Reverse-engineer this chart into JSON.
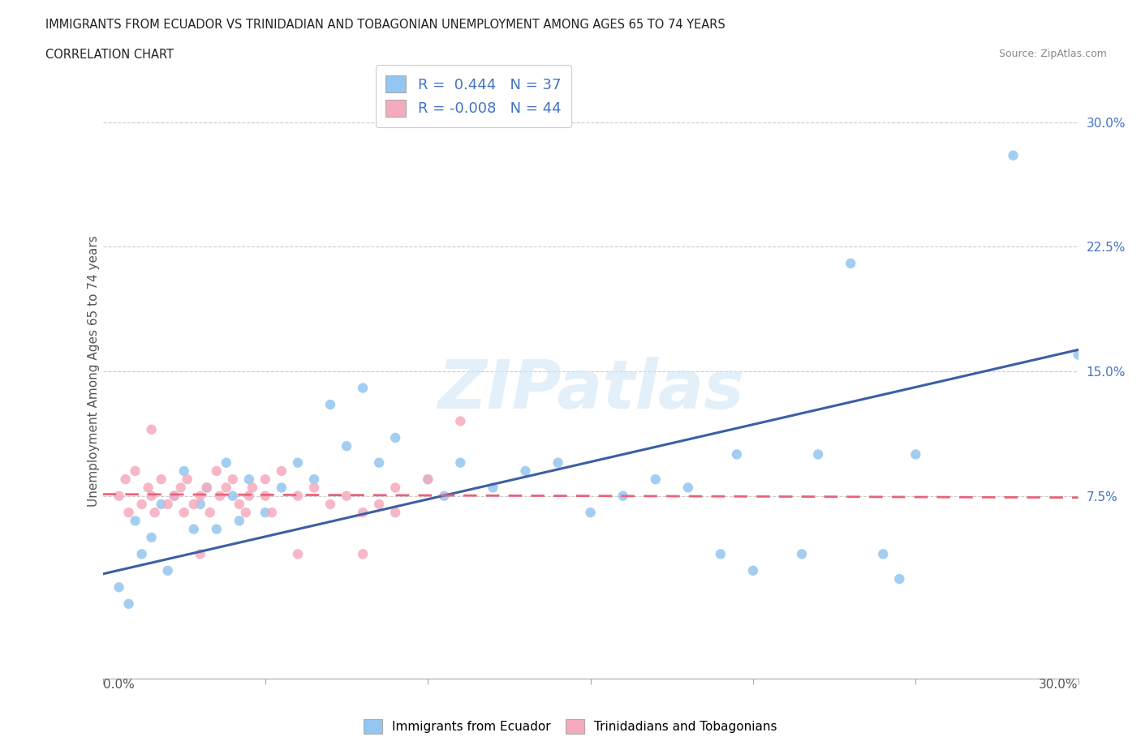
{
  "title_line1": "IMMIGRANTS FROM ECUADOR VS TRINIDADIAN AND TOBAGONIAN UNEMPLOYMENT AMONG AGES 65 TO 74 YEARS",
  "title_line2": "CORRELATION CHART",
  "source": "Source: ZipAtlas.com",
  "ylabel": "Unemployment Among Ages 65 to 74 years",
  "yticks": [
    "7.5%",
    "15.0%",
    "22.5%",
    "30.0%"
  ],
  "ytick_vals": [
    0.075,
    0.15,
    0.225,
    0.3
  ],
  "xlim": [
    0.0,
    0.3
  ],
  "ylim": [
    -0.035,
    0.335
  ],
  "watermark": "ZIPatlas",
  "color_blue": "#93C6F0",
  "color_pink": "#F5ABBE",
  "color_blue_line": "#3C5FA3",
  "color_pink_line": "#E8637A",
  "color_blue_text": "#4472C4",
  "ecuador_points": [
    [
      0.005,
      0.02
    ],
    [
      0.008,
      0.01
    ],
    [
      0.01,
      0.06
    ],
    [
      0.012,
      0.04
    ],
    [
      0.015,
      0.05
    ],
    [
      0.018,
      0.07
    ],
    [
      0.02,
      0.03
    ],
    [
      0.022,
      0.075
    ],
    [
      0.025,
      0.09
    ],
    [
      0.028,
      0.055
    ],
    [
      0.03,
      0.07
    ],
    [
      0.032,
      0.08
    ],
    [
      0.035,
      0.055
    ],
    [
      0.038,
      0.095
    ],
    [
      0.04,
      0.075
    ],
    [
      0.042,
      0.06
    ],
    [
      0.045,
      0.085
    ],
    [
      0.05,
      0.065
    ],
    [
      0.055,
      0.08
    ],
    [
      0.06,
      0.095
    ],
    [
      0.065,
      0.085
    ],
    [
      0.07,
      0.13
    ],
    [
      0.075,
      0.105
    ],
    [
      0.08,
      0.14
    ],
    [
      0.085,
      0.095
    ],
    [
      0.09,
      0.11
    ],
    [
      0.1,
      0.085
    ],
    [
      0.105,
      0.075
    ],
    [
      0.11,
      0.095
    ],
    [
      0.12,
      0.08
    ],
    [
      0.13,
      0.09
    ],
    [
      0.14,
      0.095
    ],
    [
      0.15,
      0.065
    ],
    [
      0.16,
      0.075
    ],
    [
      0.17,
      0.085
    ],
    [
      0.195,
      0.1
    ],
    [
      0.22,
      0.1
    ],
    [
      0.25,
      0.1
    ],
    [
      0.28,
      0.28
    ],
    [
      0.3,
      0.16
    ],
    [
      0.18,
      0.08
    ],
    [
      0.19,
      0.04
    ],
    [
      0.2,
      0.03
    ],
    [
      0.23,
      0.215
    ],
    [
      0.215,
      0.04
    ],
    [
      0.24,
      0.04
    ],
    [
      0.245,
      0.025
    ]
  ],
  "trinidad_points": [
    [
      0.005,
      0.075
    ],
    [
      0.007,
      0.085
    ],
    [
      0.008,
      0.065
    ],
    [
      0.01,
      0.09
    ],
    [
      0.012,
      0.07
    ],
    [
      0.014,
      0.08
    ],
    [
      0.015,
      0.075
    ],
    [
      0.016,
      0.065
    ],
    [
      0.018,
      0.085
    ],
    [
      0.02,
      0.07
    ],
    [
      0.022,
      0.075
    ],
    [
      0.024,
      0.08
    ],
    [
      0.025,
      0.065
    ],
    [
      0.026,
      0.085
    ],
    [
      0.028,
      0.07
    ],
    [
      0.03,
      0.075
    ],
    [
      0.032,
      0.08
    ],
    [
      0.033,
      0.065
    ],
    [
      0.035,
      0.09
    ],
    [
      0.036,
      0.075
    ],
    [
      0.038,
      0.08
    ],
    [
      0.04,
      0.085
    ],
    [
      0.042,
      0.07
    ],
    [
      0.044,
      0.065
    ],
    [
      0.045,
      0.075
    ],
    [
      0.046,
      0.08
    ],
    [
      0.05,
      0.085
    ],
    [
      0.052,
      0.065
    ],
    [
      0.055,
      0.09
    ],
    [
      0.06,
      0.075
    ],
    [
      0.065,
      0.08
    ],
    [
      0.07,
      0.07
    ],
    [
      0.075,
      0.075
    ],
    [
      0.08,
      0.065
    ],
    [
      0.085,
      0.07
    ],
    [
      0.09,
      0.08
    ],
    [
      0.1,
      0.085
    ],
    [
      0.11,
      0.12
    ],
    [
      0.05,
      0.075
    ],
    [
      0.03,
      0.04
    ],
    [
      0.06,
      0.04
    ],
    [
      0.08,
      0.04
    ],
    [
      0.09,
      0.065
    ],
    [
      0.015,
      0.115
    ]
  ]
}
